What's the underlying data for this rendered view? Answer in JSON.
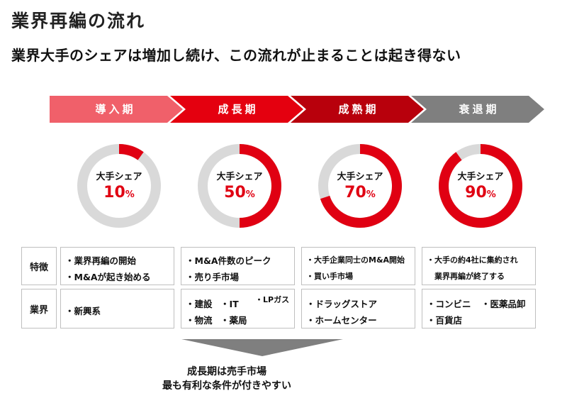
{
  "title": "業界再編の流れ",
  "subtitle": "業界大手のシェアは増加し続け、この流れが止まることは起き得ない",
  "phases": [
    {
      "label": "導入期",
      "color": "#f0606a"
    },
    {
      "label": "成長期",
      "color": "#e4000f"
    },
    {
      "label": "成熟期",
      "color": "#b8000c"
    },
    {
      "label": "衰退期",
      "color": "#7f7f7f"
    }
  ],
  "share_caption": "大手シェア",
  "shares": [
    {
      "value": "10",
      "unit": "%",
      "fraction": 0.1
    },
    {
      "value": "50",
      "unit": "%",
      "fraction": 0.5
    },
    {
      "value": "70",
      "unit": "%",
      "fraction": 0.7
    },
    {
      "value": "90",
      "unit": "%",
      "fraction": 0.9
    }
  ],
  "colors": {
    "accent": "#e00012",
    "track": "#d9d9d9",
    "border": "#bfbfbf",
    "arrow_gray": "#7f7f7f"
  },
  "rows": {
    "features_label": "特徴",
    "industry_label": "業界"
  },
  "features": [
    [
      "・業界再編の開始",
      "・M&Aが起き始める"
    ],
    [
      "・M&A件数のピーク",
      "・売り手市場"
    ],
    [
      "・大手企業同士のM&A開始",
      "・買い手市場"
    ],
    [
      "・大手の約4社に集約され",
      "業界再編が終了する"
    ]
  ],
  "industries": {
    "intro": [
      "・新興系"
    ],
    "growth": [
      "・建設",
      "・IT",
      "・LPガス",
      "・物流",
      "・薬局"
    ],
    "mature": [
      "・ドラッグストア",
      "・ホームセンター"
    ],
    "decline": [
      "・コンビニ",
      "・医薬品卸",
      "・百貨店"
    ]
  },
  "conclusion": [
    "成長期は売手市場",
    "最も有利な条件が付きやすい"
  ]
}
